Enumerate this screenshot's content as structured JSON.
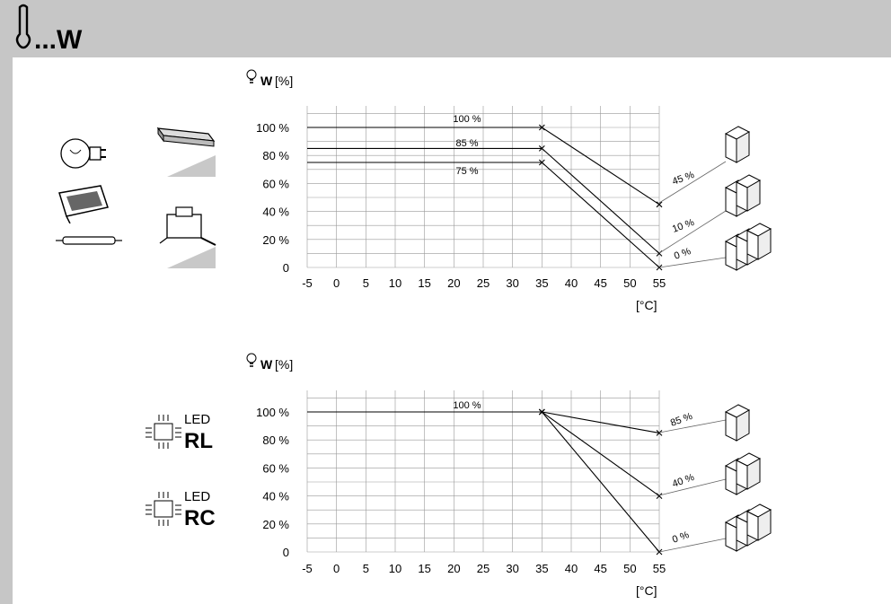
{
  "header": {
    "title": "...W"
  },
  "charts_meta": [
    {
      "led_label": "",
      "led_code": ""
    },
    {
      "led_label": "LED",
      "led_code": "RL"
    }
  ],
  "led_second": {
    "label": "LED",
    "code": "RC"
  },
  "chart_data": [
    {
      "type": "line",
      "ylabel": "W [%]",
      "xlabel": "[°C]",
      "x_ticks": [
        "-5",
        "0",
        "5",
        "10",
        "15",
        "20",
        "25",
        "30",
        "35",
        "40",
        "45",
        "50",
        "55"
      ],
      "y_ticks": [
        "0",
        "20 %",
        "40 %",
        "60 %",
        "80 %",
        "100 %"
      ],
      "xlim": [
        -5,
        55
      ],
      "ylim": [
        0,
        100
      ],
      "grid": true,
      "series": [
        {
          "x": [
            -5,
            35,
            55
          ],
          "y": [
            100,
            100,
            45
          ],
          "label_mid": "100 %",
          "label_end": "45 %"
        },
        {
          "x": [
            -5,
            35,
            55
          ],
          "y": [
            85,
            85,
            10
          ],
          "label_mid": "85 %",
          "label_end": "10 %"
        },
        {
          "x": [
            -5,
            35,
            55
          ],
          "y": [
            75,
            75,
            0
          ],
          "label_mid": "75 %",
          "label_end": "0 %"
        }
      ]
    },
    {
      "type": "line",
      "ylabel": "W [%]",
      "xlabel": "[°C]",
      "x_ticks": [
        "-5",
        "0",
        "5",
        "10",
        "15",
        "20",
        "25",
        "30",
        "35",
        "40",
        "45",
        "50",
        "55"
      ],
      "y_ticks": [
        "0",
        "20 %",
        "40 %",
        "60 %",
        "80 %",
        "100 %"
      ],
      "xlim": [
        -5,
        55
      ],
      "ylim": [
        0,
        100
      ],
      "grid": true,
      "series": [
        {
          "x": [
            -5,
            35,
            55
          ],
          "y": [
            100,
            100,
            85
          ],
          "label_mid": "100 %",
          "label_end": "85 %"
        },
        {
          "x": [
            -5,
            35,
            55
          ],
          "y": [
            100,
            100,
            40
          ],
          "label_mid": "",
          "label_end": "40 %"
        },
        {
          "x": [
            -5,
            35,
            55
          ],
          "y": [
            100,
            100,
            0
          ],
          "label_mid": "",
          "label_end": "0 %"
        }
      ]
    }
  ],
  "icons": [
    "thermometer-icon",
    "bulb-icon",
    "halogen-lamp-icon",
    "tube-lamp-icon",
    "electronic-transformer-icon",
    "transformer-icon",
    "bulb-watt-icon",
    "led-icon",
    "dimmer-module-icon"
  ]
}
